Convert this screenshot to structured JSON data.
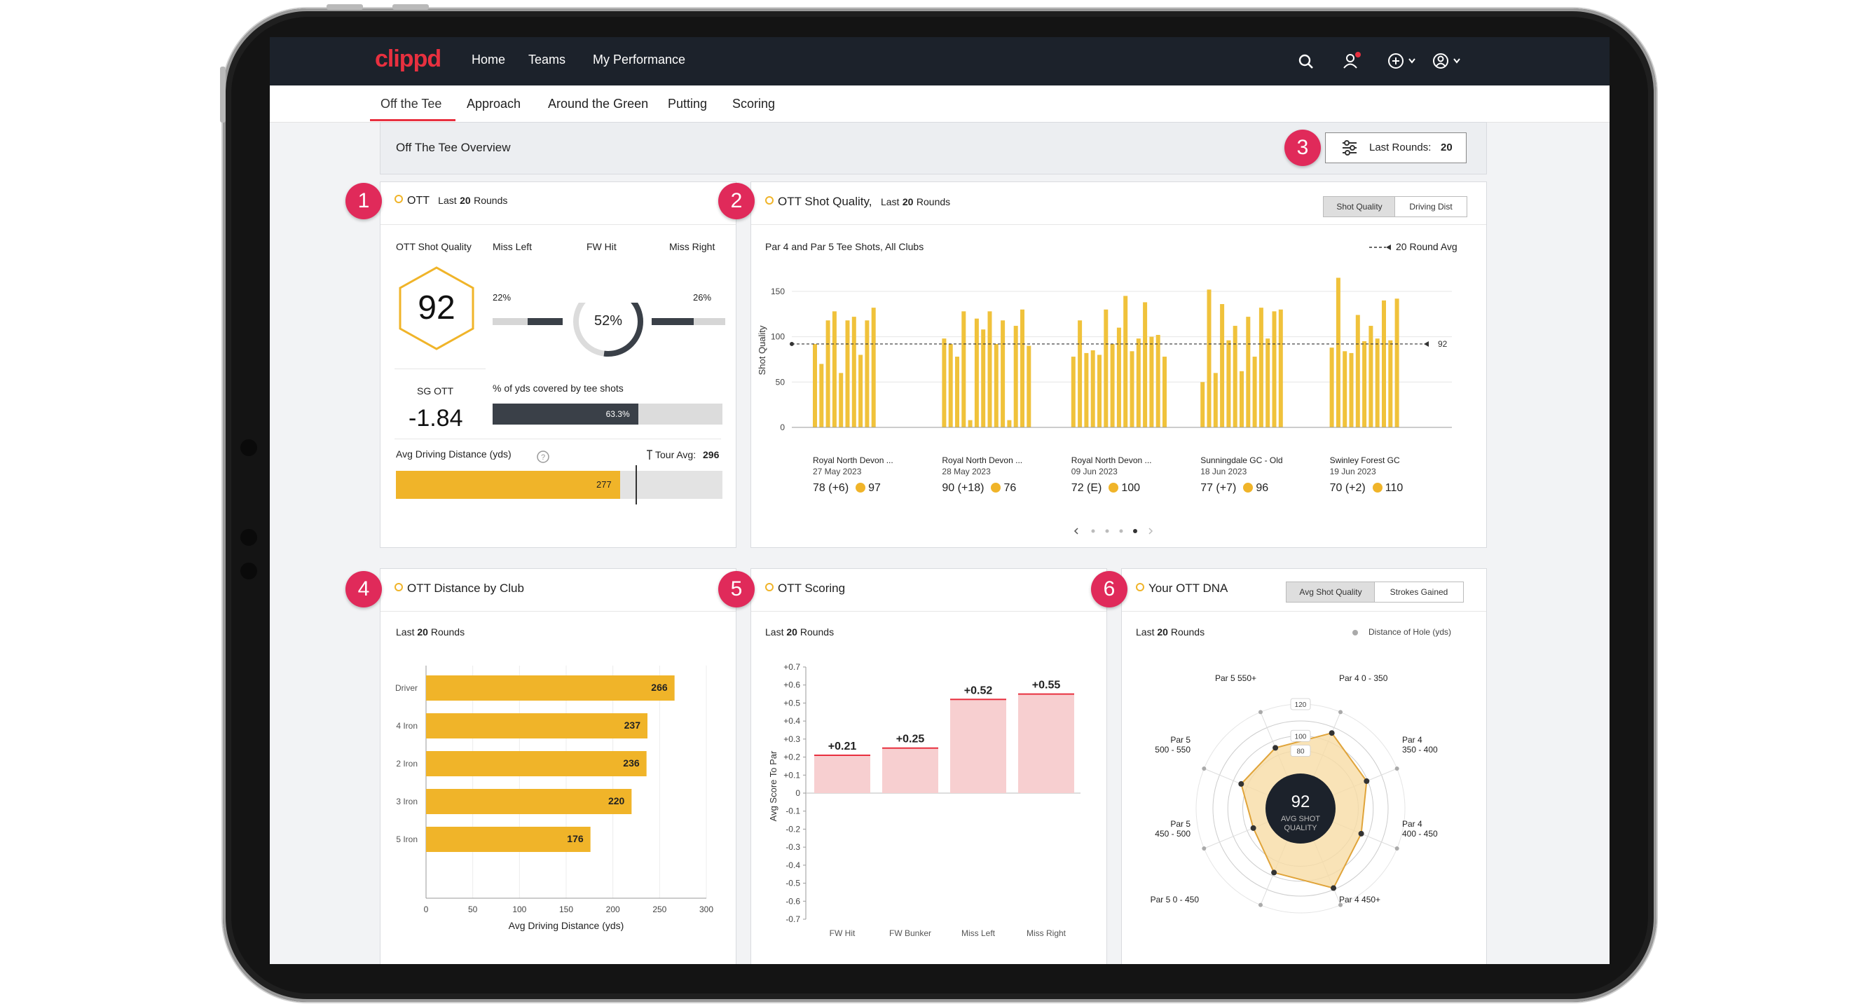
{
  "nav": {
    "logo": "clippd",
    "links": [
      "Home",
      "Teams",
      "My Performance"
    ]
  },
  "subnav": {
    "tabs": [
      "Off the Tee",
      "Approach",
      "Around the Green",
      "Putting",
      "Scoring"
    ],
    "active": "Off the Tee"
  },
  "overview": {
    "title": "Off The Tee Overview",
    "filter_label": "Last Rounds:",
    "filter_value": "20"
  },
  "badges": [
    "1",
    "2",
    "3",
    "4",
    "5",
    "6"
  ],
  "ott": {
    "title": "OTT",
    "last_prefix": "Last",
    "last_num": "20",
    "last_suffix": "Rounds",
    "shot_quality_label": "OTT Shot Quality",
    "shot_quality_value": "92",
    "miss_left_label": "Miss Left",
    "fw_hit_label": "FW Hit",
    "miss_right_label": "Miss Right",
    "miss_left_pct": "22%",
    "fw_hit_pct": "52%",
    "miss_right_pct": "26%",
    "fw_hit_fraction": 0.52,
    "sg_label": "SG OTT",
    "sg_value": "-1.84",
    "yds_label": "% of yds covered by tee shots",
    "yds_value": "63.3%",
    "yds_fraction": 0.633,
    "drive_label": "Avg Driving Distance (yds)",
    "tour_avg_label": "Tour Avg:",
    "tour_avg_value": "296",
    "drive_value": "277"
  },
  "shot_quality": {
    "title": "OTT Shot Quality,",
    "last_prefix": "Last",
    "last_num": "20",
    "last_suffix": "Rounds",
    "toggle": [
      "Shot Quality",
      "Driving Dist"
    ],
    "subtitle": "Par 4 and Par 5 Tee Shots, All Clubs",
    "legend": "20 Round Avg",
    "avg_label": "92",
    "rounds": [
      {
        "course": "Royal North Devon ...",
        "date": "27 May 2023",
        "score": "78 (+6)",
        "quality": "97"
      },
      {
        "course": "Royal North Devon ...",
        "date": "28 May 2023",
        "score": "90 (+18)",
        "quality": "76"
      },
      {
        "course": "Royal North Devon ...",
        "date": "09 Jun 2023",
        "score": "72 (E)",
        "quality": "100"
      },
      {
        "course": "Sunningdale GC - Old",
        "date": "18 Jun 2023",
        "score": "77 (+7)",
        "quality": "96"
      },
      {
        "course": "Swinley Forest GC",
        "date": "19 Jun 2023",
        "score": "70 (+2)",
        "quality": "110"
      }
    ]
  },
  "distance": {
    "title": "OTT Distance by Club",
    "last_prefix": "Last",
    "last_num": "20",
    "last_suffix": "Rounds"
  },
  "scoring": {
    "title": "OTT Scoring",
    "last_prefix": "Last",
    "last_num": "20",
    "last_suffix": "Rounds"
  },
  "dna": {
    "title": "Your OTT DNA",
    "toggle": [
      "Avg Shot Quality",
      "Strokes Gained"
    ],
    "last_prefix": "Last",
    "last_num": "20",
    "last_suffix": "Rounds",
    "legend": "Distance of Hole (yds)",
    "center_value": "92",
    "center_label1": "AVG SHOT",
    "center_label2": "QUALITY",
    "ring_labels": [
      "120",
      "100",
      "80"
    ]
  },
  "chart_data": [
    {
      "type": "bar",
      "title": "OTT Shot Quality",
      "ylabel": "Shot Quality",
      "ylim": [
        0,
        170
      ],
      "yticks": [
        0,
        50,
        100,
        150
      ],
      "reference_line": 92,
      "groups": [
        {
          "label": "Royal North Devon ...",
          "values": [
            92,
            70,
            118,
            128,
            60,
            118,
            122,
            80,
            118,
            132
          ]
        },
        {
          "label": "Royal North Devon ...",
          "values": [
            98,
            92,
            78,
            128,
            8,
            120,
            108,
            128,
            92,
            118,
            8,
            112,
            130,
            90
          ]
        },
        {
          "label": "Royal North Devon ...",
          "values": [
            78,
            118,
            82,
            85,
            80,
            130,
            92,
            110,
            145,
            84,
            98,
            138,
            100,
            102,
            78
          ]
        },
        {
          "label": "Sunningdale GC - Old",
          "values": [
            50,
            152,
            60,
            136,
            96,
            112,
            62,
            122,
            78,
            132,
            98,
            128,
            130
          ]
        },
        {
          "label": "Swinley Forest GC",
          "values": [
            88,
            165,
            84,
            82,
            124,
            95,
            112,
            98,
            140,
            96,
            142
          ]
        }
      ]
    },
    {
      "type": "bar",
      "orientation": "horizontal",
      "title": "OTT Distance by Club",
      "xlabel": "Avg Driving Distance (yds)",
      "categories": [
        "Driver",
        "4 Iron",
        "2 Iron",
        "3 Iron",
        "5 Iron"
      ],
      "values": [
        266,
        237,
        236,
        220,
        176
      ],
      "xlim": [
        0,
        300
      ],
      "xticks": [
        0,
        50,
        100,
        150,
        200,
        250,
        300
      ]
    },
    {
      "type": "bar",
      "title": "OTT Scoring",
      "ylabel": "Avg Score To Par",
      "categories": [
        "FW Hit",
        "FW Bunker",
        "Miss Left",
        "Miss Right"
      ],
      "values": [
        0.21,
        0.25,
        0.52,
        0.55
      ],
      "value_labels": [
        "+0.21",
        "+0.25",
        "+0.52",
        "+0.55"
      ],
      "ylim": [
        -0.7,
        0.7
      ],
      "yticks": [
        "+0.7",
        "+0.6",
        "+0.5",
        "+0.4",
        "+0.3",
        "+0.2",
        "+0.1",
        "0",
        "-0.1",
        "-0.2",
        "-0.3",
        "-0.4",
        "-0.5",
        "-0.6",
        "-0.7"
      ]
    },
    {
      "type": "radar",
      "title": "Your OTT DNA",
      "categories": [
        "Par 4 0 - 350",
        "Par 4 350 - 400",
        "Par 4 400 - 450",
        "Par 4 450+",
        "Par 5 0 - 450",
        "Par 5 450 - 500",
        "Par 5 500 - 550",
        "Par 5 550+"
      ],
      "values": [
        112,
        98,
        90,
        118,
        95,
        70,
        88,
        90
      ],
      "rmax": 120
    }
  ]
}
